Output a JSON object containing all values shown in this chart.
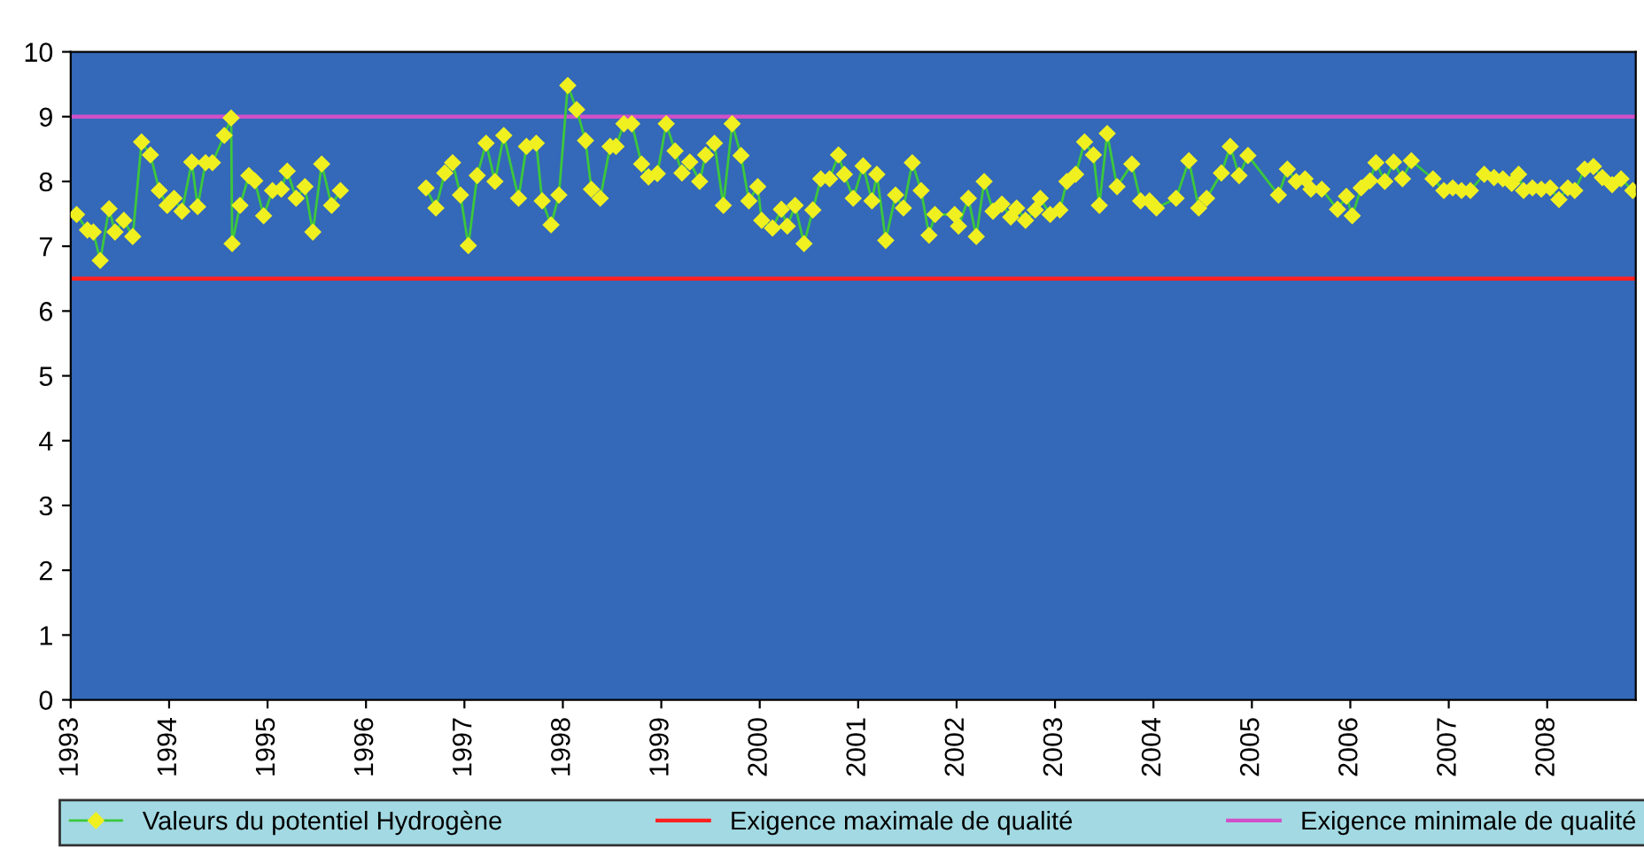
{
  "chart_data": {
    "type": "line",
    "xlim": [
      1993,
      2008.9
    ],
    "xticks": [
      1993,
      1994,
      1995,
      1996,
      1997,
      1998,
      1999,
      2000,
      2001,
      2002,
      2003,
      2004,
      2005,
      2006,
      2007,
      2008
    ],
    "ylim": [
      0,
      10
    ],
    "yticks": [
      0,
      1,
      2,
      3,
      4,
      5,
      6,
      7,
      8,
      9,
      10
    ],
    "grid": false,
    "legend": "bottom",
    "marker": "diamond",
    "line_style": "solid",
    "series": [
      {
        "name": "Valeurs du potentiel Hydrogène",
        "color": "#3cc83c",
        "x": [
          1993.06,
          1993.17,
          1993.23,
          1993.3,
          1993.39,
          1993.45,
          1993.54,
          1993.63,
          1993.72,
          1993.81,
          1993.9,
          1993.98,
          1994.05,
          1994.13,
          1994.23,
          1994.29,
          1994.37,
          1994.44,
          1994.56,
          1994.63,
          1994.64,
          1994.72,
          1994.81,
          1994.87,
          1994.96,
          1995.05,
          1995.14,
          1995.2,
          1995.29,
          1995.38,
          1995.46,
          1995.55,
          1995.65,
          1995.74,
          1996.2,
          1996.61,
          1996.71,
          1996.8,
          1996.88,
          1996.96,
          1997.04,
          1997.13,
          1997.22,
          1997.31,
          1997.4,
          1997.55,
          1997.63,
          1997.73,
          1997.79,
          1997.88,
          1997.96,
          1998.05,
          1998.14,
          1998.23,
          1998.29,
          1998.38,
          1998.48,
          1998.54,
          1998.62,
          1998.7,
          1998.8,
          1998.87,
          1998.96,
          1999.05,
          1999.14,
          1999.21,
          1999.29,
          1999.39,
          1999.45,
          1999.54,
          1999.63,
          1999.72,
          1999.81,
          1999.89,
          1999.98,
          2000.02,
          2000.13,
          2000.22,
          2000.28,
          2000.36,
          2000.45,
          2000.54,
          2000.62,
          2000.71,
          2000.8,
          2000.86,
          2000.95,
          2001.05,
          2001.14,
          2001.19,
          2001.28,
          2001.38,
          2001.46,
          2001.55,
          2001.64,
          2001.72,
          2001.78,
          2001.98,
          2002.02,
          2002.12,
          2002.2,
          2002.28,
          2002.37,
          2002.46,
          2002.55,
          2002.61,
          2002.7,
          2002.8,
          2002.85,
          2002.95,
          2003.05,
          2003.12,
          2003.21,
          2003.3,
          2003.39,
          2003.45,
          2003.53,
          2003.63,
          2003.78,
          2003.87,
          2003.96,
          2004.03,
          2004.23,
          2004.36,
          2004.46,
          2004.54,
          2004.69,
          2004.78,
          2004.87,
          2004.96,
          2005.27,
          2005.36,
          2005.45,
          2005.54,
          2005.6,
          2005.71,
          2005.87,
          2005.96,
          2006.02,
          2006.11,
          2006.2,
          2006.26,
          2006.35,
          2006.44,
          2006.53,
          2006.62,
          2006.84,
          2006.95,
          2007.04,
          2007.13,
          2007.22,
          2007.36,
          2007.46,
          2007.55,
          2007.64,
          2007.71,
          2007.76,
          2007.85,
          2007.94,
          2008.03,
          2008.12,
          2008.21,
          2008.28,
          2008.38,
          2008.47,
          2008.56,
          2008.66,
          2008.75,
          2008.87
        ],
        "values": [
          7.49,
          7.25,
          7.22,
          6.78,
          7.58,
          7.22,
          7.4,
          7.15,
          8.61,
          8.41,
          7.86,
          7.63,
          7.74,
          7.54,
          8.3,
          7.61,
          8.29,
          8.29,
          8.71,
          8.98,
          7.04,
          7.63,
          8.09,
          8.01,
          7.47,
          7.86,
          7.88,
          8.16,
          7.74,
          7.92,
          7.22,
          8.27,
          7.63,
          7.86,
          null,
          7.9,
          7.59,
          8.13,
          8.29,
          7.79,
          7.01,
          8.09,
          8.59,
          8.0,
          8.71,
          7.74,
          8.54,
          8.59,
          7.7,
          7.33,
          7.79,
          9.48,
          9.11,
          8.63,
          7.88,
          7.74,
          8.54,
          8.54,
          8.89,
          8.89,
          8.27,
          8.07,
          8.12,
          8.89,
          8.47,
          8.13,
          8.3,
          8.0,
          8.41,
          8.59,
          7.63,
          8.89,
          8.4,
          7.7,
          7.92,
          7.4,
          7.28,
          7.57,
          7.31,
          7.63,
          7.04,
          7.56,
          8.04,
          8.04,
          8.41,
          8.11,
          7.74,
          8.24,
          7.7,
          8.11,
          7.09,
          7.79,
          7.59,
          8.29,
          7.86,
          7.17,
          7.49,
          7.49,
          7.31,
          7.74,
          7.15,
          8.0,
          7.54,
          7.65,
          7.45,
          7.59,
          7.4,
          7.56,
          7.74,
          7.49,
          7.56,
          8.0,
          8.11,
          8.61,
          8.41,
          7.63,
          8.74,
          7.92,
          8.27,
          7.7,
          7.7,
          7.59,
          7.74,
          8.32,
          7.59,
          7.74,
          8.13,
          8.54,
          8.09,
          8.4,
          7.79,
          8.19,
          8.0,
          8.04,
          7.88,
          7.88,
          7.57,
          7.77,
          7.47,
          7.9,
          8.01,
          8.29,
          8.0,
          8.3,
          8.04,
          8.32,
          8.04,
          7.86,
          7.9,
          7.86,
          7.86,
          8.11,
          8.06,
          8.04,
          7.97,
          8.11,
          7.86,
          7.9,
          7.88,
          7.9,
          7.72,
          7.9,
          7.86,
          8.19,
          8.23,
          8.06,
          7.95,
          8.04,
          7.86
        ]
      }
    ],
    "ref_lines": [
      {
        "axis": "y",
        "value": 6.5,
        "label": "Exigence maximale de qualité",
        "color": "#ff2020"
      },
      {
        "axis": "y",
        "value": 9,
        "label": "Exigence minimale de qualité",
        "color": "#d050c8"
      }
    ]
  }
}
